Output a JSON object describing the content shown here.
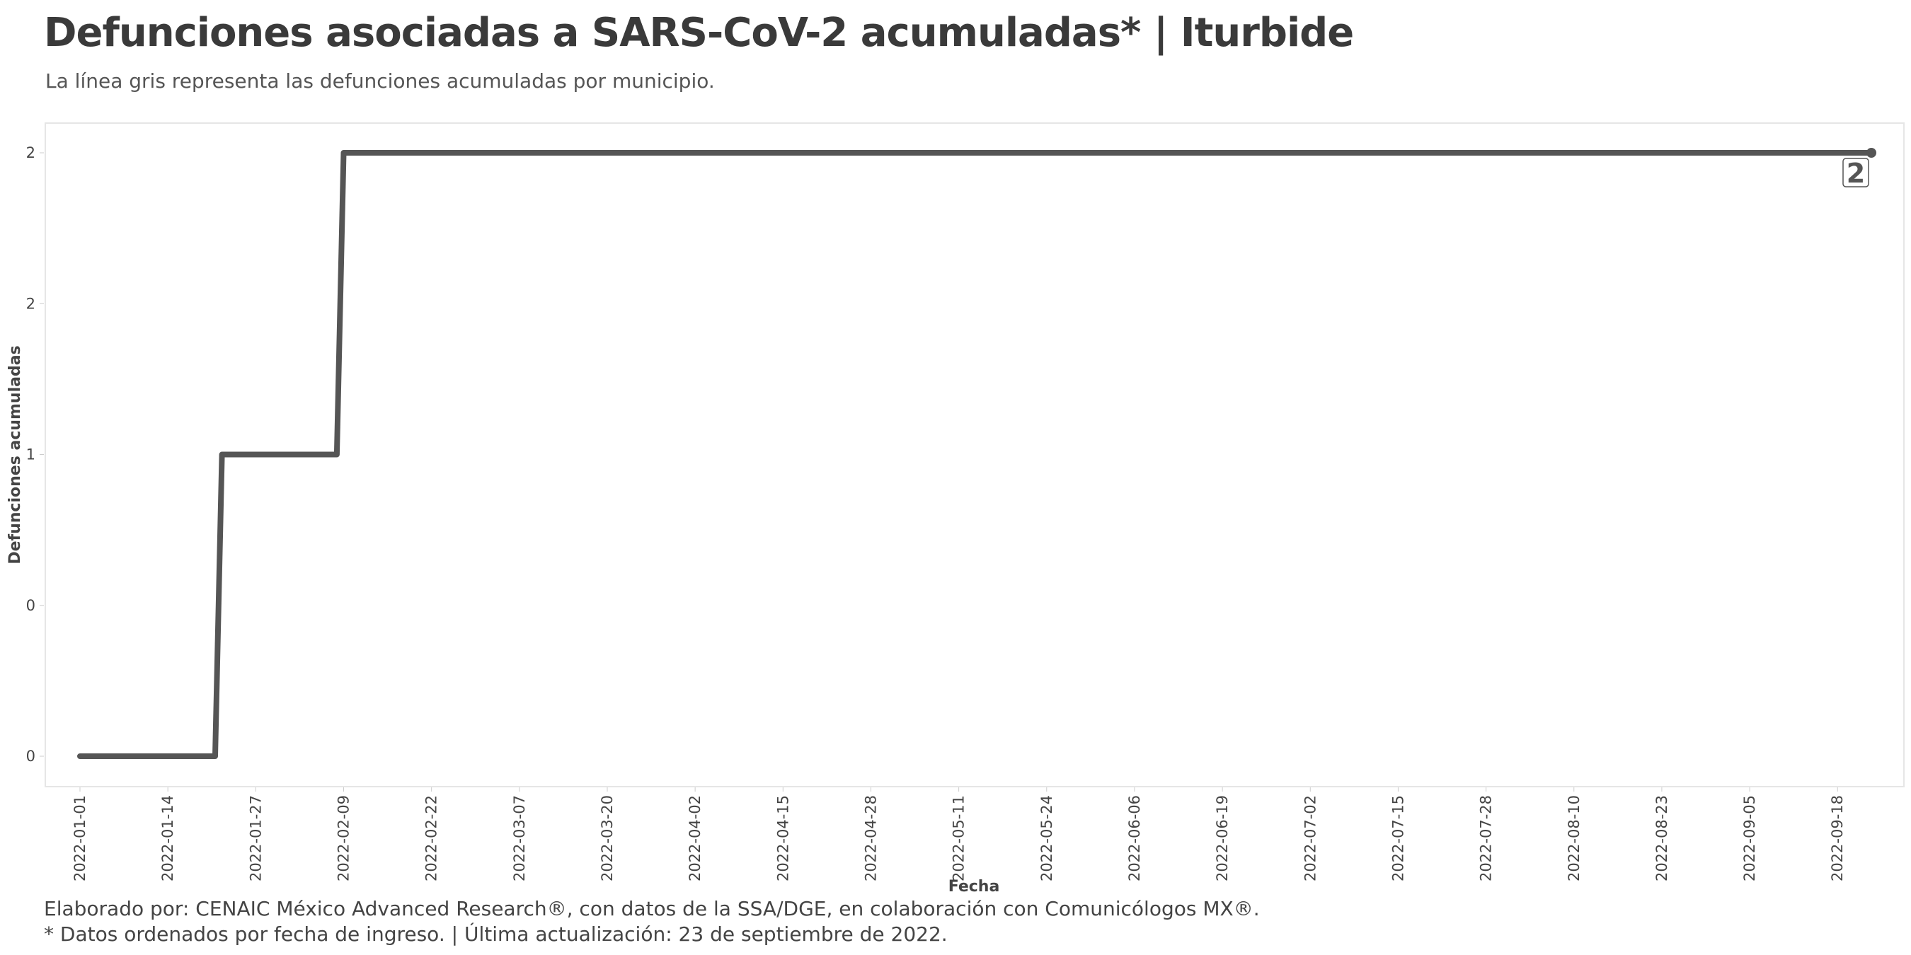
{
  "header": {
    "title": "Defunciones asociadas a SARS-CoV-2 acumuladas* | Iturbide",
    "subtitle": "La línea gris representa las defunciones acumuladas por municipio."
  },
  "footer": {
    "caption_line1": "Elaborado por: CENAIC México Advanced Research®, con datos de la SSA/DGE, en colaboración con Comunicólogos MX®.",
    "caption_line2": "* Datos ordenados por fecha de ingreso. | Última actualización: 23 de septiembre de 2022."
  },
  "colors": {
    "line": "#555555",
    "panel_border": "#e6e6e6",
    "text": "#444444"
  },
  "chart_data": {
    "type": "line",
    "step": true,
    "title": "Defunciones asociadas a SARS-CoV-2 acumuladas* | Iturbide",
    "subtitle": "La línea gris representa las defunciones acumuladas por municipio.",
    "xlabel": "Fecha",
    "ylabel": "Defunciones acumuladas",
    "x_range": [
      "2022-01-01",
      "2022-09-23"
    ],
    "ylim": [
      0,
      2
    ],
    "y_ticks": [
      0,
      0.5,
      1,
      1.5,
      2
    ],
    "y_tick_labels": [
      "0",
      "0",
      "1",
      "2",
      "2"
    ],
    "x_tick_labels": [
      "2022-01-01",
      "2022-01-14",
      "2022-01-27",
      "2022-02-09",
      "2022-02-22",
      "2022-03-07",
      "2022-03-20",
      "2022-04-02",
      "2022-04-15",
      "2022-04-28",
      "2022-05-11",
      "2022-05-24",
      "2022-06-06",
      "2022-06-19",
      "2022-07-02",
      "2022-07-15",
      "2022-07-28",
      "2022-08-10",
      "2022-08-23",
      "2022-09-05",
      "2022-09-18"
    ],
    "grid": false,
    "series": [
      {
        "points": [
          {
            "x": "2022-01-01",
            "y": 0
          },
          {
            "x": "2022-01-21",
            "y": 0
          },
          {
            "x": "2022-01-22",
            "y": 1
          },
          {
            "x": "2022-02-08",
            "y": 1
          },
          {
            "x": "2022-02-09",
            "y": 2
          },
          {
            "x": "2022-09-23",
            "y": 2
          }
        ]
      }
    ],
    "end_label": "2"
  }
}
